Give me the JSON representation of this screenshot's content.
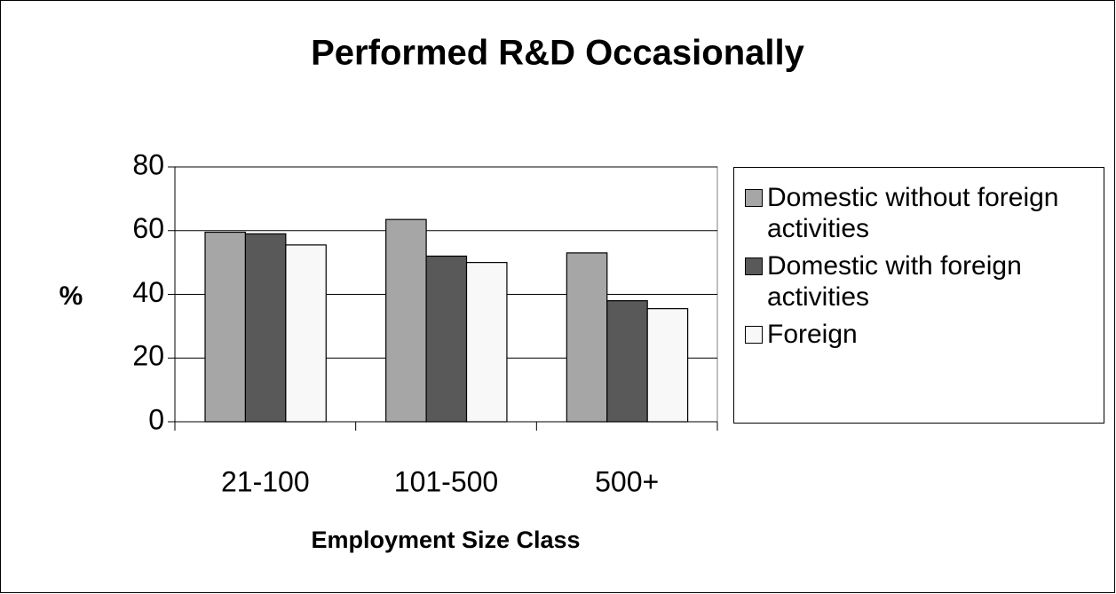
{
  "chart_data": {
    "type": "bar",
    "title": "Performed R&D Occasionally",
    "x_label": "Employment Size Class",
    "y_label": "%",
    "categories": [
      "21-100",
      "101-500",
      "500+"
    ],
    "series": [
      {
        "name": "Domestic without foreign activities",
        "color": "#a6a6a6",
        "values": [
          59.5,
          63.5,
          53
        ]
      },
      {
        "name": "Domestic with foreign activities",
        "color": "#595959",
        "values": [
          59,
          52,
          38
        ]
      },
      {
        "name": "Foreign",
        "color": "#f8f8f8",
        "values": [
          55.5,
          50,
          35.5
        ]
      }
    ],
    "ylim": [
      0,
      80
    ],
    "yticks": [
      0,
      20,
      40,
      60,
      80
    ],
    "grid": true,
    "legend": "right"
  }
}
